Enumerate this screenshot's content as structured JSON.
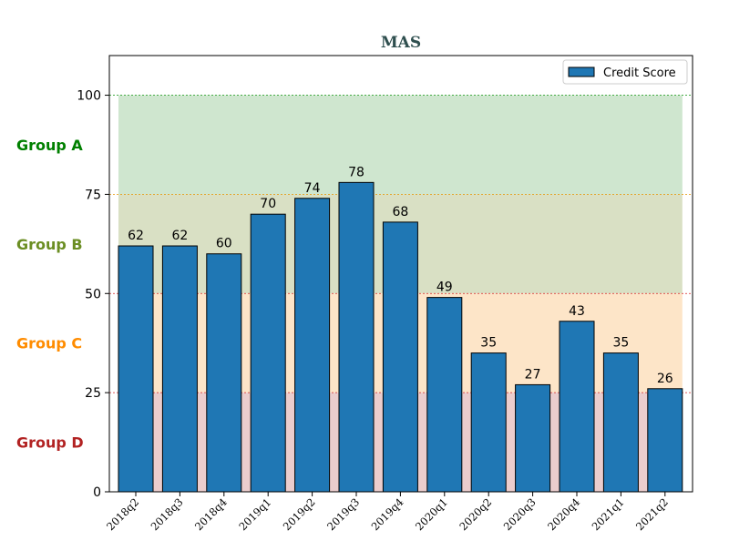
{
  "chart_data": {
    "type": "bar",
    "title": "MAS",
    "title_color": "#2f4f4f",
    "xlabel": "",
    "ylabel": "",
    "categories": [
      "2018q2",
      "2018q3",
      "2018q4",
      "2019q1",
      "2019q2",
      "2019q3",
      "2019q4",
      "2020q1",
      "2020q2",
      "2020q3",
      "2020q4",
      "2021q1",
      "2021q2"
    ],
    "series": [
      {
        "name": "Credit Score",
        "values": [
          62,
          62,
          60,
          70,
          74,
          78,
          68,
          49,
          35,
          27,
          43,
          35,
          26
        ],
        "color": "#1f77b4"
      }
    ],
    "ylim": [
      0,
      110
    ],
    "yticks": [
      0,
      25,
      50,
      75,
      100
    ],
    "grid": false,
    "legend_position": "top-right",
    "bands": [
      {
        "name": "Group A",
        "from": 75,
        "to": 100,
        "fill": "#cfe6cf",
        "line_color": "#2ca02c",
        "label_color": "#008000"
      },
      {
        "name": "Group B",
        "from": 50,
        "to": 75,
        "fill": "#d9e0c4",
        "line_color": "#e69500",
        "label_color": "#6b8e23"
      },
      {
        "name": "Group C",
        "from": 25,
        "to": 50,
        "fill": "#fde5c8",
        "line_color": "#d62728",
        "label_color": "#ff8c00"
      },
      {
        "name": "Group D",
        "from": 0,
        "to": 25,
        "fill": "#ebcdcd",
        "line_color": "#d62728",
        "label_color": "#b22222"
      }
    ]
  }
}
